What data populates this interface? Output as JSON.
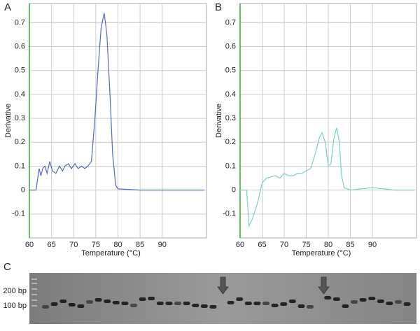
{
  "chart_data": [
    {
      "type": "line",
      "panel_label": "A",
      "x_label": "Temperature (°C)",
      "y_label": "Derivative",
      "color": "#5566cc",
      "xlim": [
        60,
        100
      ],
      "xticks": [
        60,
        65,
        70,
        75,
        80,
        85,
        90
      ],
      "ylim": [
        -0.2,
        0.78
      ],
      "yticks": [
        -0.1,
        0,
        0.1,
        0.2,
        0.3,
        0.4,
        0.5,
        0.6,
        0.7
      ],
      "grid": true,
      "x": [
        60,
        61.5,
        62.2,
        62.6,
        63,
        63.5,
        64,
        64.6,
        65.2,
        66,
        66.8,
        67.5,
        68,
        68.8,
        69.5,
        70.3,
        71,
        71.8,
        72.5,
        73.2,
        74,
        74.8,
        75.5,
        76.2,
        76.9,
        77.5,
        78.2,
        78.8,
        79.5,
        80,
        85,
        90,
        95,
        99.5
      ],
      "values": [
        0,
        0,
        0.09,
        0.06,
        0.09,
        0.1,
        0.07,
        0.12,
        0.08,
        0.07,
        0.1,
        0.08,
        0.1,
        0.11,
        0.09,
        0.11,
        0.09,
        0.1,
        0.09,
        0.1,
        0.12,
        0.3,
        0.5,
        0.68,
        0.74,
        0.65,
        0.4,
        0.15,
        0.02,
        0.005,
        0,
        0,
        0,
        0
      ]
    },
    {
      "type": "line",
      "panel_label": "B",
      "x_label": "Temperature (°C)",
      "y_label": "Derivative",
      "color": "#77d4b4",
      "xlim": [
        60,
        100
      ],
      "xticks": [
        60,
        65,
        70,
        75,
        80,
        85,
        90
      ],
      "ylim": [
        -0.2,
        0.78
      ],
      "yticks": [
        -0.1,
        0,
        0.1,
        0.2,
        0.3,
        0.4,
        0.5,
        0.6,
        0.7
      ],
      "grid": true,
      "x": [
        60,
        61.5,
        62,
        62.8,
        64,
        65,
        66,
        67,
        68,
        69,
        70,
        71,
        72,
        73,
        74,
        75,
        76,
        77,
        78,
        78.6,
        79.3,
        80,
        80.6,
        81.3,
        81.9,
        82.5,
        83,
        83.6,
        85,
        90,
        95,
        99.5
      ],
      "values": [
        0,
        0,
        -0.15,
        -0.12,
        -0.05,
        0.03,
        0.05,
        0.055,
        0.06,
        0.05,
        0.07,
        0.06,
        0.06,
        0.07,
        0.07,
        0.08,
        0.09,
        0.15,
        0.22,
        0.24,
        0.2,
        0.1,
        0.11,
        0.22,
        0.26,
        0.2,
        0.06,
        0.01,
        0,
        0.01,
        0,
        0
      ]
    }
  ],
  "gel": {
    "panel_label": "C",
    "ladder_labels": [
      "200 bp",
      "100 bp"
    ]
  }
}
